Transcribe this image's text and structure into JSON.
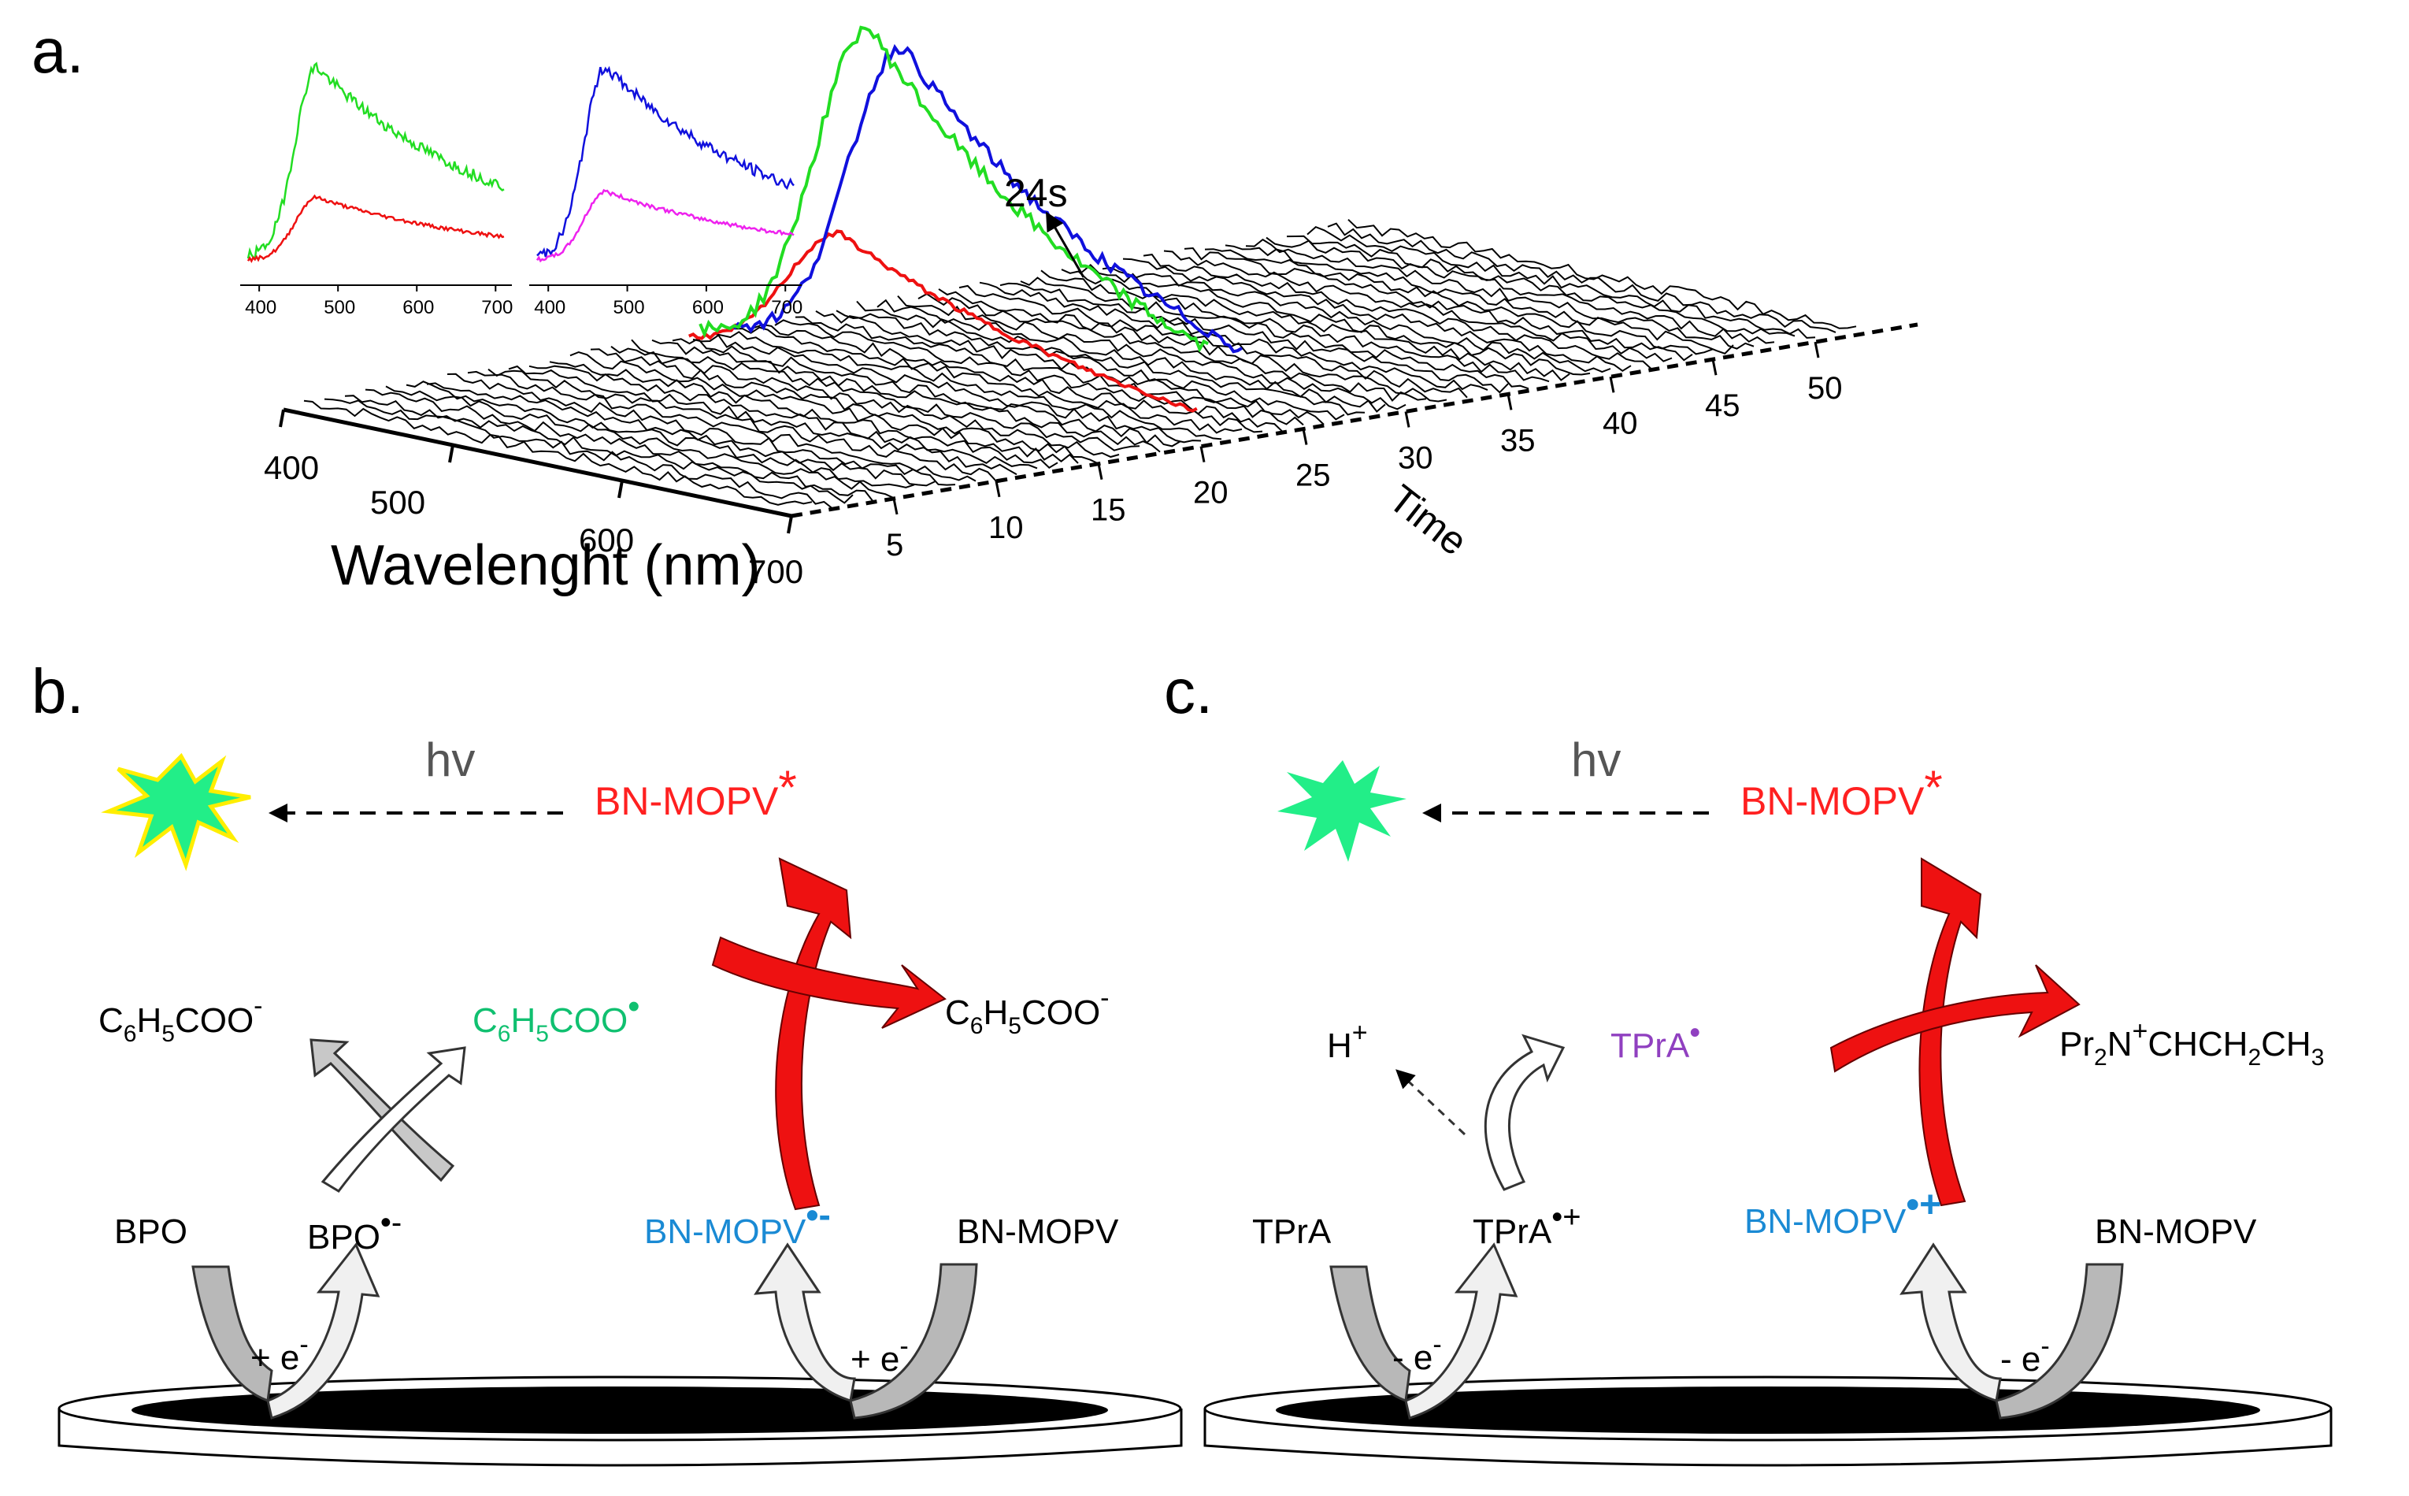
{
  "panels": {
    "a": "a.",
    "b": "b.",
    "c": "c."
  },
  "colors": {
    "red": "#ff2020",
    "blue": "#1a8ad4",
    "green": "#10c070",
    "purple": "#9040c0",
    "trace_green": "#22dd22",
    "trace_blue": "#1010dd",
    "trace_red": "#ee1111",
    "trace_magenta": "#ee22ee",
    "star_fill": "#22ee88",
    "star_edge": "#ffee00"
  },
  "chart_data": {
    "type": "waterfall-3d",
    "xlabel": "Wavelenght (nm)",
    "zlabel": "Time",
    "x_ticks": [
      "400",
      "500",
      "600",
      "700"
    ],
    "time_ticks": [
      "5",
      "10",
      "15",
      "20",
      "25",
      "30",
      "35",
      "40",
      "45",
      "50"
    ],
    "annotation": "24s",
    "main_traces": [
      {
        "name": "green",
        "peak_wavelength_nm": 500,
        "peak_rel_intensity": 1.0
      },
      {
        "name": "blue",
        "peak_wavelength_nm": 500,
        "peak_rel_intensity": 0.93
      },
      {
        "name": "red",
        "peak_wavelength_nm": 490,
        "peak_rel_intensity": 0.4
      }
    ],
    "insets": [
      {
        "x_ticks": [
          "400",
          "500",
          "600",
          "700"
        ],
        "series": [
          {
            "name": "green",
            "peak": 1.0
          },
          {
            "name": "red",
            "peak": 0.33
          }
        ]
      },
      {
        "x_ticks": [
          "400",
          "500",
          "600",
          "700"
        ],
        "series": [
          {
            "name": "blue",
            "peak": 1.0
          },
          {
            "name": "magenta",
            "peak": 0.36
          }
        ]
      }
    ]
  },
  "scheme_b": {
    "hv": "hv",
    "excited": "BN-MOPV",
    "star": "*",
    "benzoate_left_main": "C",
    "benzoate_left_sub1": "6",
    "benzoate_left_mid": "H",
    "benzoate_left_sub2": "5",
    "benzoate_left_end": "COO",
    "benzoate_left_sup": "-",
    "radical_main": "C",
    "radical_sub1": "6",
    "radical_mid": "H",
    "radical_sub2": "5",
    "radical_end": "COO",
    "radical_sup": "•",
    "benzoate_right_main": "C",
    "benzoate_right_sub1": "6",
    "benzoate_right_mid": "H",
    "benzoate_right_sub2": "5",
    "benzoate_right_end": "COO",
    "benzoate_right_sup": "-",
    "bpo": "BPO",
    "bpo_radical": "BPO",
    "bpo_radical_sup": "•-",
    "anion": "BN-MOPV",
    "anion_sup": "•-",
    "neutral": "BN-MOPV",
    "electron_left": "+ e",
    "electron_left_sup": "-",
    "electron_right": "+ e",
    "electron_right_sup": "-"
  },
  "scheme_c": {
    "hv": "hv",
    "excited": "BN-MOPV",
    "star": "*",
    "proton": "H",
    "proton_sup": "+",
    "tpra_radical": "TPrA",
    "tpra_radical_sup": "•",
    "product_a": "Pr",
    "product_sub1": "2",
    "product_b": "N",
    "product_sup": "+",
    "product_c": "CHCH",
    "product_sub2": "2",
    "product_d": "CH",
    "product_sub3": "3",
    "tpra": "TPrA",
    "tpra_cation": "TPrA",
    "tpra_cation_sup": "•+",
    "cation": "BN-MOPV",
    "cation_sup": "•+",
    "neutral": "BN-MOPV",
    "electron_left": "- e",
    "electron_left_sup": "-",
    "electron_right": "- e",
    "electron_right_sup": "-"
  }
}
